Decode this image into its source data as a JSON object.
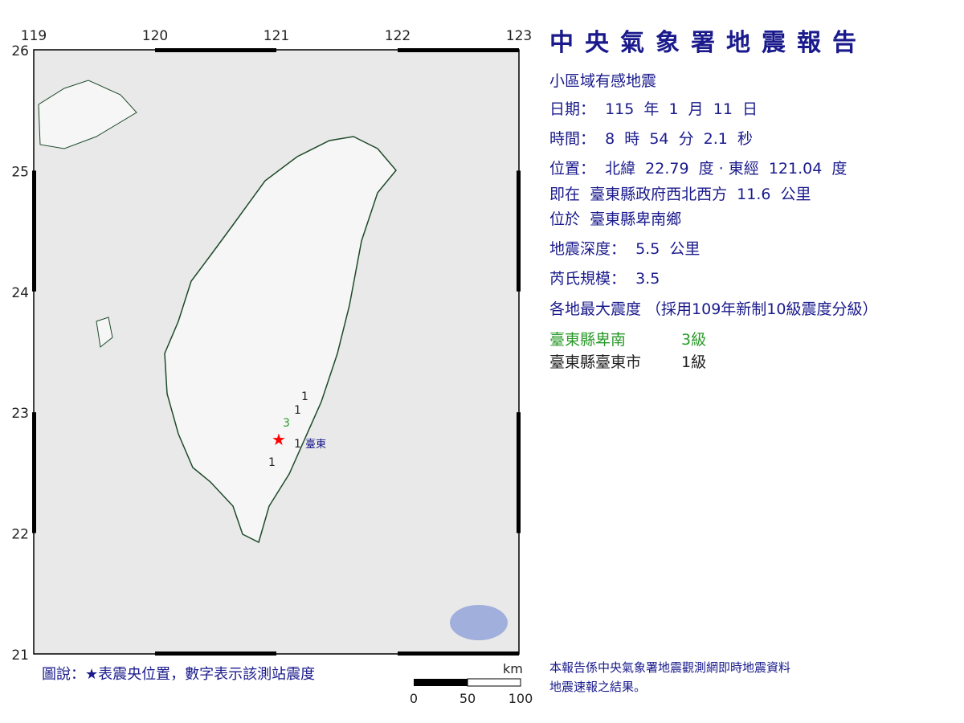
{
  "report": {
    "title": "中央氣象署地震報告",
    "type": "小區域有感地震",
    "date": "日期：  115  年  1  月  11  日",
    "time": "時間：  8  時  54  分  2.1  秒",
    "position": "位置：  北緯  22.79  度 · 東經  121.04  度",
    "relative": "即在  臺東縣政府西北西方  11.6  公里",
    "located": "位於  臺東縣卑南鄉",
    "depth": "地震深度：  5.5  公里",
    "magnitude": "芮氏規模：  3.5",
    "intensity_header": "各地最大震度 （採用109年新制10級震度分級）",
    "intensities": [
      {
        "area": "臺東縣卑南",
        "level": "3級",
        "color": "#2a9a2a"
      },
      {
        "area": "臺東縣臺東市",
        "level": "1級",
        "color": "#222222"
      }
    ],
    "footnote_line1": "本報告係中央氣象署地震觀測網即時地震資料",
    "footnote_line2": "地震速報之結果。"
  },
  "map": {
    "lon_ticks": [
      "119",
      "120",
      "121",
      "122",
      "123"
    ],
    "lat_ticks": [
      "26",
      "25",
      "24",
      "23",
      "22",
      "21"
    ],
    "station_label": "臺東",
    "station_values": [
      "1",
      "1",
      "3",
      "1",
      "1"
    ],
    "legend": "圖說：★表震央位置，數字表示該測站震度",
    "scale_unit": "km",
    "scale_ticks": [
      "0",
      "50",
      "100"
    ],
    "epicenter_color": "#ff0000"
  }
}
